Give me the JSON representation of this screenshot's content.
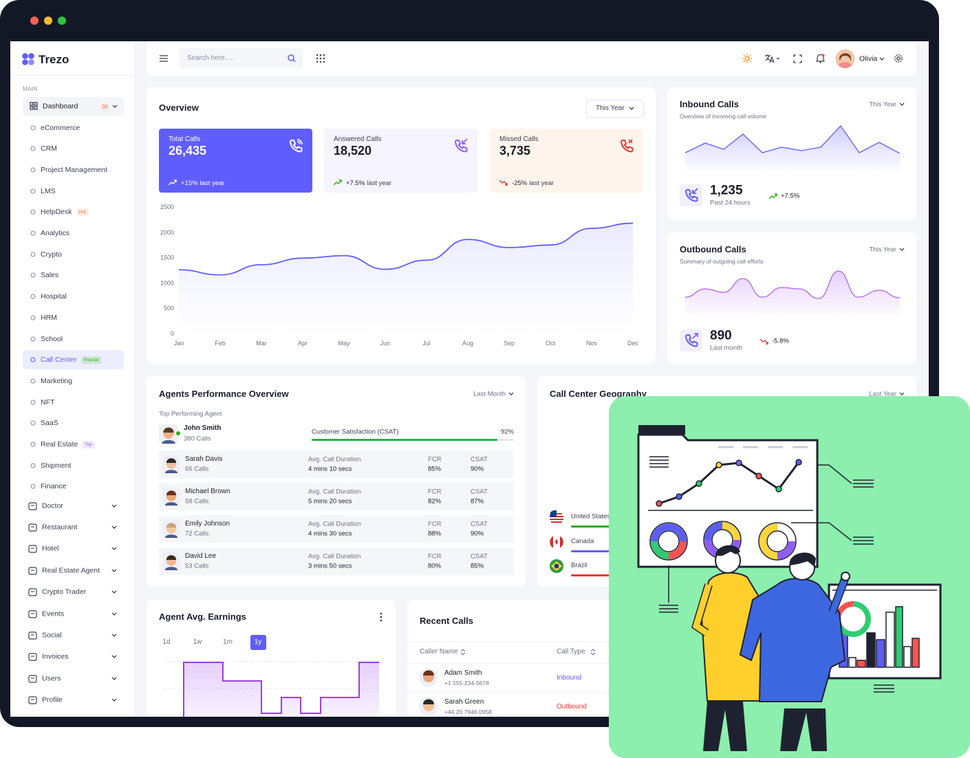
{
  "sidebar": {
    "logo": "Trezo",
    "section": "MAIN",
    "dashboard": {
      "label": "Dashboard",
      "badge": "30"
    },
    "dashboard_items": [
      {
        "label": "eCommerce"
      },
      {
        "label": "CRM"
      },
      {
        "label": "Project Management"
      },
      {
        "label": "LMS"
      },
      {
        "label": "HelpDesk",
        "badge": "Hot",
        "badge_color": "#ff6b2c"
      },
      {
        "label": "Analytics"
      },
      {
        "label": "Crypto"
      },
      {
        "label": "Sales"
      },
      {
        "label": "Hospital"
      },
      {
        "label": "HRM"
      },
      {
        "label": "School"
      },
      {
        "label": "Call Center",
        "badge": "Popular",
        "badge_color": "#25b003",
        "active": true
      },
      {
        "label": "Marketing"
      },
      {
        "label": "NFT"
      },
      {
        "label": "SaaS"
      },
      {
        "label": "Real Estate",
        "badge": "Top",
        "badge_color": "#8e5cf7"
      },
      {
        "label": "Shipment"
      },
      {
        "label": "Finance"
      }
    ],
    "menu": [
      "Doctor",
      "Restaurant",
      "Hotel",
      "Real Estate Agent",
      "Crypto Trader",
      "Events",
      "Social",
      "Invoices",
      "Users",
      "Profile"
    ]
  },
  "topbar": {
    "search_placeholder": "Search here.....",
    "user": "Olivia"
  },
  "overview": {
    "title": "Overview",
    "filter": "This Year",
    "stats": [
      {
        "label": "Total Calls",
        "value": "26,435",
        "change": "+15%",
        "note": "last year",
        "color": "#605dff"
      },
      {
        "label": "Answered Calls",
        "value": "18,520",
        "change": "+7.5%",
        "note": "last year",
        "color": "#f6f4ff"
      },
      {
        "label": "Missed Calls",
        "value": "3,735",
        "change": "-25%",
        "note": "last year",
        "color": "#fff5ec"
      }
    ],
    "chart": {
      "type": "line",
      "categories": [
        "Jan",
        "Feb",
        "Mar",
        "Apr",
        "May",
        "Jun",
        "Jul",
        "Aug",
        "Sep",
        "Oct",
        "Nov",
        "Dec"
      ],
      "values": [
        1260,
        1160,
        1360,
        1490,
        1540,
        1270,
        1450,
        1860,
        1700,
        1750,
        2080,
        2180
      ],
      "color": "#605dff",
      "ylim": [
        0,
        2500
      ],
      "yticks": [
        0,
        500,
        1000,
        1500,
        2000,
        2500
      ]
    }
  },
  "inbound": {
    "title": "Inbound Calls",
    "subtitle": "Overview of incoming call volume",
    "filter": "This Year",
    "value": "1,235",
    "note": "Past 24 hours",
    "change": "+7.5%"
  },
  "outbound": {
    "title": "Outbound Calls",
    "subtitle": "Summary of outgoing call efforts",
    "filter": "This Year",
    "value": "890",
    "note": "Last month",
    "change": "-5.8%"
  },
  "agents": {
    "title": "Agents Performance Overview",
    "filter": "Last Month",
    "top_label": "Top Performing Agent",
    "top": {
      "name": "John Smith",
      "calls": "380 Calls",
      "metric": "Customer Satisfaction (CSAT)",
      "value": 92,
      "value_label": "92%",
      "xlim": [
        0,
        100
      ]
    },
    "columns": [
      "Avg. Call Duration",
      "FCR",
      "CSAT"
    ],
    "rows": [
      {
        "name": "Sarah Davis",
        "calls": "65 Calls",
        "duration": "4 mins 10 secs",
        "fcr": "85%",
        "csat": "90%"
      },
      {
        "name": "Michael Brown",
        "calls": "58 Calls",
        "duration": "5 mins 20 secs",
        "fcr": "82%",
        "csat": "87%"
      },
      {
        "name": "Emily Johnson",
        "calls": "72 Calls",
        "duration": "4 mins 30 secs",
        "fcr": "88%",
        "csat": "90%"
      },
      {
        "name": "David Lee",
        "calls": "53 Calls",
        "duration": "3 mins 50 secs",
        "fcr": "80%",
        "csat": "85%"
      }
    ]
  },
  "geography": {
    "title": "Call Center Geography",
    "filter": "Last Year",
    "countries": [
      "United States",
      "Canada",
      "Brazil"
    ]
  },
  "earnings": {
    "title": "Agent Avg. Earnings",
    "ranges": [
      "1d",
      "1w",
      "1m",
      "1y"
    ],
    "active_range": 3
  },
  "recent_calls": {
    "title": "Recent Calls",
    "columns": [
      "Caller Name",
      "Call Type"
    ],
    "rows": [
      {
        "name": "Adam Smith",
        "phone": "+1 555-234-5678",
        "type": "Inbound",
        "color": "#605dff"
      },
      {
        "name": "Sarah Green",
        "phone": "+44 20 7946 0958",
        "type": "Outbound",
        "color": "#e53935"
      }
    ]
  }
}
